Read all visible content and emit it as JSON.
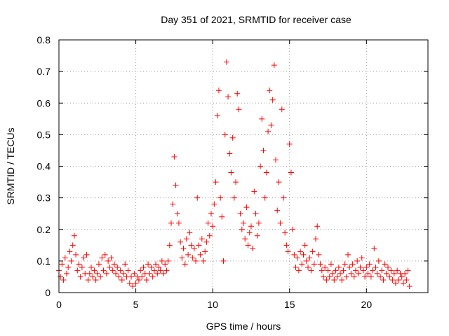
{
  "chart_data": {
    "type": "scatter",
    "title": "Day 351 of 2021, SRMTID for receiver case",
    "xlabel": "GPS time / hours",
    "ylabel": "SRMTID / TECUs",
    "xlim": [
      0,
      24
    ],
    "ylim": [
      0,
      0.8
    ],
    "x_ticks": [
      0,
      5,
      10,
      15,
      20
    ],
    "x_tick_labels": [
      "0",
      "5",
      "10",
      "15",
      "20"
    ],
    "y_ticks": [
      0,
      0.1,
      0.2,
      0.3,
      0.4,
      0.5,
      0.6,
      0.7,
      0.8
    ],
    "y_tick_labels": [
      "0",
      "0.1",
      "0.2",
      "0.3",
      "0.4",
      "0.5",
      "0.6",
      "0.7",
      "0.8"
    ],
    "grid": true,
    "marker": "+",
    "color": "#ff0000",
    "series": [
      {
        "name": "SRMTID",
        "points": [
          [
            0.0,
            0.07
          ],
          [
            0.1,
            0.05
          ],
          [
            0.2,
            0.09
          ],
          [
            0.3,
            0.04
          ],
          [
            0.4,
            0.11
          ],
          [
            0.5,
            0.06
          ],
          [
            0.6,
            0.08
          ],
          [
            0.7,
            0.13
          ],
          [
            0.8,
            0.1
          ],
          [
            0.9,
            0.15
          ],
          [
            1.0,
            0.18
          ],
          [
            1.1,
            0.12
          ],
          [
            1.2,
            0.07
          ],
          [
            1.3,
            0.09
          ],
          [
            1.4,
            0.05
          ],
          [
            1.5,
            0.08
          ],
          [
            1.6,
            0.11
          ],
          [
            1.7,
            0.06
          ],
          [
            1.8,
            0.12
          ],
          [
            1.9,
            0.04
          ],
          [
            2.0,
            0.06
          ],
          [
            2.1,
            0.08
          ],
          [
            2.2,
            0.05
          ],
          [
            2.3,
            0.07
          ],
          [
            2.4,
            0.04
          ],
          [
            2.5,
            0.06
          ],
          [
            2.6,
            0.09
          ],
          [
            2.7,
            0.05
          ],
          [
            2.8,
            0.11
          ],
          [
            2.9,
            0.07
          ],
          [
            3.0,
            0.12
          ],
          [
            3.1,
            0.06
          ],
          [
            3.2,
            0.1
          ],
          [
            3.3,
            0.08
          ],
          [
            3.4,
            0.11
          ],
          [
            3.5,
            0.07
          ],
          [
            3.6,
            0.09
          ],
          [
            3.7,
            0.06
          ],
          [
            3.8,
            0.08
          ],
          [
            3.9,
            0.05
          ],
          [
            4.0,
            0.07
          ],
          [
            4.1,
            0.04
          ],
          [
            4.2,
            0.06
          ],
          [
            4.3,
            0.09
          ],
          [
            4.4,
            0.05
          ],
          [
            4.5,
            0.07
          ],
          [
            4.6,
            0.03
          ],
          [
            4.7,
            0.05
          ],
          [
            4.8,
            0.02
          ],
          [
            4.9,
            0.06
          ],
          [
            5.0,
            0.03
          ],
          [
            5.1,
            0.05
          ],
          [
            5.2,
            0.04
          ],
          [
            5.3,
            0.07
          ],
          [
            5.4,
            0.05
          ],
          [
            5.5,
            0.08
          ],
          [
            5.6,
            0.06
          ],
          [
            5.7,
            0.04
          ],
          [
            5.8,
            0.09
          ],
          [
            5.9,
            0.06
          ],
          [
            6.0,
            0.08
          ],
          [
            6.1,
            0.05
          ],
          [
            6.2,
            0.07
          ],
          [
            6.3,
            0.09
          ],
          [
            6.4,
            0.06
          ],
          [
            6.5,
            0.08
          ],
          [
            6.6,
            0.07
          ],
          [
            6.7,
            0.1
          ],
          [
            6.8,
            0.06
          ],
          [
            6.9,
            0.09
          ],
          [
            7.0,
            0.07
          ],
          [
            7.1,
            0.1
          ],
          [
            7.2,
            0.15
          ],
          [
            7.3,
            0.22
          ],
          [
            7.4,
            0.28
          ],
          [
            7.5,
            0.43
          ],
          [
            7.6,
            0.34
          ],
          [
            7.7,
            0.25
          ],
          [
            7.8,
            0.22
          ],
          [
            7.9,
            0.16
          ],
          [
            8.0,
            0.11
          ],
          [
            8.1,
            0.14
          ],
          [
            8.2,
            0.09
          ],
          [
            8.3,
            0.17
          ],
          [
            8.4,
            0.12
          ],
          [
            8.5,
            0.19
          ],
          [
            8.6,
            0.15
          ],
          [
            8.7,
            0.11
          ],
          [
            8.8,
            0.14
          ],
          [
            8.9,
            0.1
          ],
          [
            9.0,
            0.3
          ],
          [
            9.1,
            0.15
          ],
          [
            9.2,
            0.12
          ],
          [
            9.3,
            0.17
          ],
          [
            9.4,
            0.1
          ],
          [
            9.5,
            0.13
          ],
          [
            9.6,
            0.16
          ],
          [
            9.7,
            0.22
          ],
          [
            9.8,
            0.18
          ],
          [
            9.9,
            0.25
          ],
          [
            10.0,
            0.21
          ],
          [
            10.1,
            0.28
          ],
          [
            10.2,
            0.35
          ],
          [
            10.3,
            0.56
          ],
          [
            10.4,
            0.64
          ],
          [
            10.5,
            0.3
          ],
          [
            10.6,
            0.24
          ],
          [
            10.7,
            0.1
          ],
          [
            10.8,
            0.5
          ],
          [
            10.9,
            0.73
          ],
          [
            11.0,
            0.62
          ],
          [
            11.1,
            0.44
          ],
          [
            11.2,
            0.38
          ],
          [
            11.3,
            0.49
          ],
          [
            11.4,
            0.3
          ],
          [
            11.5,
            0.35
          ],
          [
            11.6,
            0.63
          ],
          [
            11.7,
            0.58
          ],
          [
            11.8,
            0.25
          ],
          [
            11.9,
            0.2
          ],
          [
            12.0,
            0.22
          ],
          [
            12.1,
            0.17
          ],
          [
            12.2,
            0.27
          ],
          [
            12.3,
            0.15
          ],
          [
            12.4,
            0.19
          ],
          [
            12.5,
            0.21
          ],
          [
            12.6,
            0.14
          ],
          [
            12.7,
            0.32
          ],
          [
            12.8,
            0.25
          ],
          [
            12.9,
            0.18
          ],
          [
            13.0,
            0.22
          ],
          [
            13.1,
            0.4
          ],
          [
            13.2,
            0.55
          ],
          [
            13.3,
            0.45
          ],
          [
            13.4,
            0.3
          ],
          [
            13.5,
            0.38
          ],
          [
            13.6,
            0.51
          ],
          [
            13.7,
            0.64
          ],
          [
            13.8,
            0.53
          ],
          [
            13.9,
            0.61
          ],
          [
            14.0,
            0.72
          ],
          [
            14.1,
            0.42
          ],
          [
            14.2,
            0.26
          ],
          [
            14.3,
            0.35
          ],
          [
            14.4,
            0.22
          ],
          [
            14.5,
            0.58
          ],
          [
            14.6,
            0.3
          ],
          [
            14.7,
            0.19
          ],
          [
            14.8,
            0.15
          ],
          [
            14.9,
            0.13
          ],
          [
            15.0,
            0.47
          ],
          [
            15.1,
            0.38
          ],
          [
            15.2,
            0.2
          ],
          [
            15.3,
            0.12
          ],
          [
            15.4,
            0.08
          ],
          [
            15.5,
            0.11
          ],
          [
            15.6,
            0.07
          ],
          [
            15.7,
            0.13
          ],
          [
            15.8,
            0.09
          ],
          [
            15.9,
            0.12
          ],
          [
            16.0,
            0.15
          ],
          [
            16.1,
            0.1
          ],
          [
            16.2,
            0.08
          ],
          [
            16.3,
            0.11
          ],
          [
            16.4,
            0.07
          ],
          [
            16.5,
            0.13
          ],
          [
            16.6,
            0.09
          ],
          [
            16.7,
            0.17
          ],
          [
            16.8,
            0.21
          ],
          [
            16.9,
            0.12
          ],
          [
            17.0,
            0.09
          ],
          [
            17.1,
            0.07
          ],
          [
            17.2,
            0.05
          ],
          [
            17.3,
            0.08
          ],
          [
            17.4,
            0.04
          ],
          [
            17.5,
            0.07
          ],
          [
            17.6,
            0.05
          ],
          [
            17.7,
            0.09
          ],
          [
            17.8,
            0.06
          ],
          [
            17.9,
            0.04
          ],
          [
            18.0,
            0.07
          ],
          [
            18.1,
            0.05
          ],
          [
            18.2,
            0.08
          ],
          [
            18.3,
            0.06
          ],
          [
            18.4,
            0.04
          ],
          [
            18.5,
            0.07
          ],
          [
            18.6,
            0.09
          ],
          [
            18.7,
            0.05
          ],
          [
            18.8,
            0.12
          ],
          [
            18.9,
            0.08
          ],
          [
            19.0,
            0.06
          ],
          [
            19.1,
            0.09
          ],
          [
            19.2,
            0.05
          ],
          [
            19.3,
            0.07
          ],
          [
            19.4,
            0.1
          ],
          [
            19.5,
            0.06
          ],
          [
            19.6,
            0.08
          ],
          [
            19.7,
            0.11
          ],
          [
            19.8,
            0.07
          ],
          [
            19.9,
            0.05
          ],
          [
            20.0,
            0.08
          ],
          [
            20.1,
            0.06
          ],
          [
            20.2,
            0.09
          ],
          [
            20.3,
            0.05
          ],
          [
            20.4,
            0.07
          ],
          [
            20.5,
            0.14
          ],
          [
            20.6,
            0.08
          ],
          [
            20.7,
            0.06
          ],
          [
            20.8,
            0.1
          ],
          [
            20.9,
            0.05
          ],
          [
            21.0,
            0.07
          ],
          [
            21.1,
            0.04
          ],
          [
            21.2,
            0.09
          ],
          [
            21.3,
            0.06
          ],
          [
            21.4,
            0.08
          ],
          [
            21.5,
            0.05
          ],
          [
            21.6,
            0.07
          ],
          [
            21.7,
            0.04
          ],
          [
            21.8,
            0.06
          ],
          [
            21.9,
            0.03
          ],
          [
            22.0,
            0.07
          ],
          [
            22.1,
            0.04
          ],
          [
            22.2,
            0.06
          ],
          [
            22.3,
            0.05
          ],
          [
            22.4,
            0.03
          ],
          [
            22.5,
            0.06
          ],
          [
            22.6,
            0.04
          ],
          [
            22.7,
            0.07
          ],
          [
            22.8,
            0.02
          ]
        ]
      }
    ]
  }
}
